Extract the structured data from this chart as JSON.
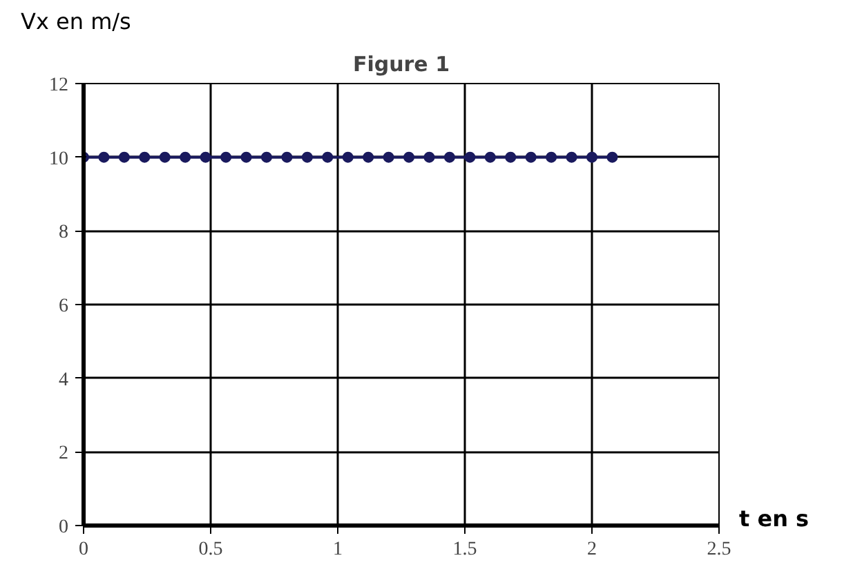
{
  "chart_data": {
    "type": "line",
    "title": "Figure 1",
    "xlabel": "t en s",
    "ylabel": "Vx en m/s",
    "x": [
      0,
      0.08,
      0.16,
      0.24,
      0.32,
      0.4,
      0.48,
      0.56,
      0.64,
      0.72,
      0.8,
      0.88,
      0.96,
      1.04,
      1.12,
      1.2,
      1.28,
      1.36,
      1.44,
      1.52,
      1.6,
      1.68,
      1.76,
      1.84,
      1.92,
      2.0,
      2.08
    ],
    "series": [
      {
        "color": "#1a1a5e",
        "values": [
          10,
          10,
          10,
          10,
          10,
          10,
          10,
          10,
          10,
          10,
          10,
          10,
          10,
          10,
          10,
          10,
          10,
          10,
          10,
          10,
          10,
          10,
          10,
          10,
          10,
          10,
          10
        ]
      }
    ],
    "xlim": [
      0,
      2.5
    ],
    "ylim": [
      0,
      12
    ],
    "xticks": [
      0,
      0.5,
      1,
      1.5,
      2,
      2.5
    ],
    "yticks": [
      0,
      2,
      4,
      6,
      8,
      10,
      12
    ],
    "grid": true,
    "marker": "circle",
    "line_style": "solid"
  }
}
